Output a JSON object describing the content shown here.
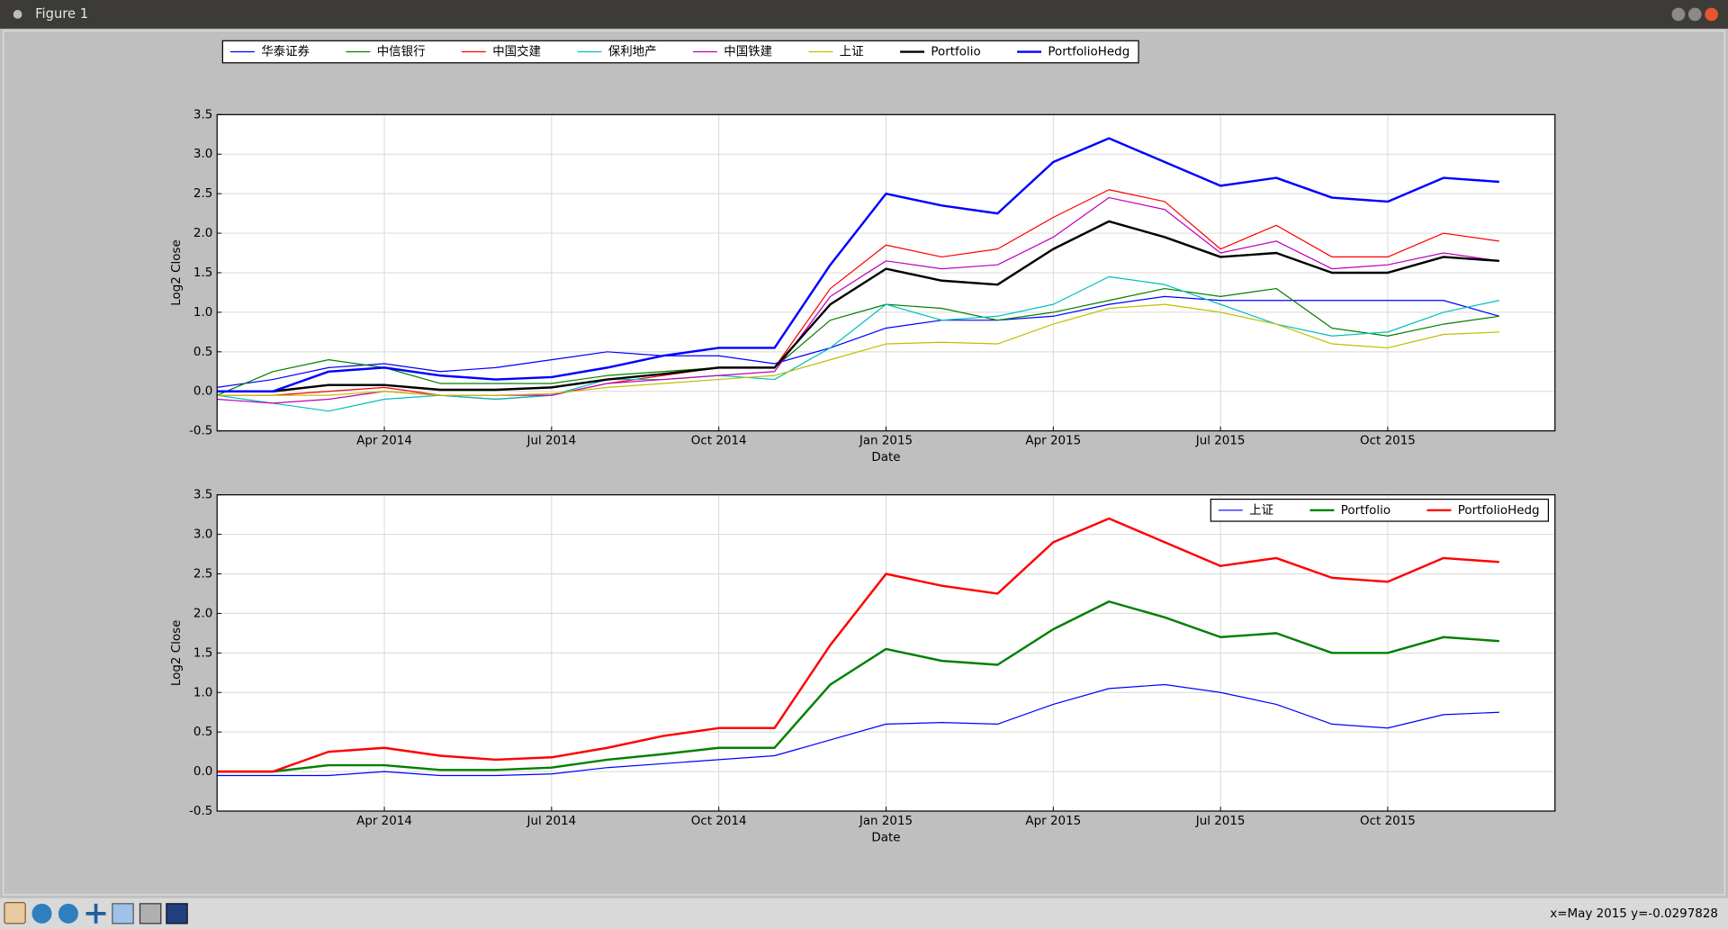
{
  "window": {
    "title": "Figure 1"
  },
  "status": "x=May 2015 y=-0.0297828",
  "chart_data": [
    {
      "type": "line",
      "xlabel": "Date",
      "ylabel": "Log2 Close",
      "x": [
        "2014-01",
        "2014-02",
        "2014-03",
        "2014-04",
        "2014-05",
        "2014-06",
        "2014-07",
        "2014-08",
        "2014-09",
        "2014-10",
        "2014-11",
        "2014-12",
        "2015-01",
        "2015-02",
        "2015-03",
        "2015-04",
        "2015-05",
        "2015-06",
        "2015-07",
        "2015-08",
        "2015-09",
        "2015-10",
        "2015-11",
        "2015-12"
      ],
      "xlim": [
        "2014-01",
        "2016-01"
      ],
      "xticks": [
        {
          "value": "2014-04",
          "label": "Apr 2014"
        },
        {
          "value": "2014-07",
          "label": "Jul 2014"
        },
        {
          "value": "2014-10",
          "label": "Oct 2014"
        },
        {
          "value": "2015-01",
          "label": "Jan 2015"
        },
        {
          "value": "2015-04",
          "label": "Apr 2015"
        },
        {
          "value": "2015-07",
          "label": "Jul 2015"
        },
        {
          "value": "2015-10",
          "label": "Oct 2015"
        }
      ],
      "ylim": [
        -0.5,
        3.5
      ],
      "yticks": [
        -0.5,
        {
          "value": 0,
          "label": "0.0"
        },
        0.5,
        {
          "value": 1,
          "label": "1.0"
        },
        1.5,
        {
          "value": 2,
          "label": "2.0"
        },
        2.5,
        {
          "value": 3,
          "label": "3.0"
        },
        3.5
      ],
      "grid": true,
      "legend": "top-outside",
      "series": [
        {
          "name": "华泰证券",
          "color": "#0000ff",
          "linewidth": 1,
          "values": [
            0.05,
            0.15,
            0.3,
            0.35,
            0.25,
            0.3,
            0.4,
            0.5,
            0.45,
            0.45,
            0.35,
            0.55,
            0.8,
            0.9,
            0.9,
            0.95,
            1.1,
            1.2,
            1.15,
            1.15,
            1.15,
            1.15,
            1.15,
            0.95
          ]
        },
        {
          "name": "中信银行",
          "color": "#008000",
          "linewidth": 1,
          "values": [
            -0.05,
            0.25,
            0.4,
            0.3,
            0.1,
            0.1,
            0.1,
            0.2,
            0.25,
            0.3,
            0.3,
            0.9,
            1.1,
            1.05,
            0.9,
            1.0,
            1.15,
            1.3,
            1.2,
            1.3,
            0.8,
            0.7,
            0.85,
            0.95
          ]
        },
        {
          "name": "中国交建",
          "color": "#ff0000",
          "linewidth": 1,
          "values": [
            -0.05,
            -0.05,
            0.0,
            0.05,
            -0.05,
            -0.1,
            -0.05,
            0.1,
            0.2,
            0.3,
            0.3,
            1.3,
            1.85,
            1.7,
            1.8,
            2.2,
            2.55,
            2.4,
            1.8,
            2.1,
            1.7,
            1.7,
            2.0,
            1.9
          ]
        },
        {
          "name": "保利地产",
          "color": "#00bfbf",
          "linewidth": 1,
          "values": [
            -0.05,
            -0.15,
            -0.25,
            -0.1,
            -0.05,
            -0.1,
            -0.05,
            0.15,
            0.15,
            0.2,
            0.15,
            0.55,
            1.1,
            0.9,
            0.95,
            1.1,
            1.45,
            1.35,
            1.1,
            0.85,
            0.7,
            0.75,
            1.0,
            1.15
          ]
        },
        {
          "name": "中国铁建",
          "color": "#bf00bf",
          "linewidth": 1,
          "values": [
            -0.1,
            -0.15,
            -0.1,
            0.0,
            -0.05,
            -0.05,
            -0.05,
            0.1,
            0.15,
            0.2,
            0.25,
            1.2,
            1.65,
            1.55,
            1.6,
            1.95,
            2.45,
            2.3,
            1.75,
            1.9,
            1.55,
            1.6,
            1.75,
            1.65
          ]
        },
        {
          "name": "上证",
          "color": "#bfbf00",
          "linewidth": 1,
          "values": [
            -0.05,
            -0.05,
            -0.05,
            0.0,
            -0.05,
            -0.05,
            -0.03,
            0.05,
            0.1,
            0.15,
            0.2,
            0.4,
            0.6,
            0.62,
            0.6,
            0.85,
            1.05,
            1.1,
            1.0,
            0.85,
            0.6,
            0.55,
            0.72,
            0.75
          ]
        },
        {
          "name": "Portfolio",
          "color": "#000000",
          "linewidth": 2,
          "values": [
            0.0,
            0.0,
            0.08,
            0.08,
            0.02,
            0.02,
            0.05,
            0.15,
            0.22,
            0.3,
            0.3,
            1.1,
            1.55,
            1.4,
            1.35,
            1.8,
            2.15,
            1.95,
            1.7,
            1.75,
            1.5,
            1.5,
            1.7,
            1.65
          ]
        },
        {
          "name": "PortfolioHedg",
          "color": "#0000ff",
          "linewidth": 2,
          "values": [
            0.0,
            0.0,
            0.25,
            0.3,
            0.2,
            0.15,
            0.18,
            0.3,
            0.45,
            0.55,
            0.55,
            1.6,
            2.5,
            2.35,
            2.25,
            2.9,
            3.2,
            2.9,
            2.6,
            2.7,
            2.45,
            2.4,
            2.7,
            2.65
          ]
        }
      ]
    },
    {
      "type": "line",
      "xlabel": "Date",
      "ylabel": "Log2 Close",
      "x": [
        "2014-01",
        "2014-02",
        "2014-03",
        "2014-04",
        "2014-05",
        "2014-06",
        "2014-07",
        "2014-08",
        "2014-09",
        "2014-10",
        "2014-11",
        "2014-12",
        "2015-01",
        "2015-02",
        "2015-03",
        "2015-04",
        "2015-05",
        "2015-06",
        "2015-07",
        "2015-08",
        "2015-09",
        "2015-10",
        "2015-11",
        "2015-12"
      ],
      "xlim": [
        "2014-01",
        "2016-01"
      ],
      "xticks": [
        {
          "value": "2014-04",
          "label": "Apr 2014"
        },
        {
          "value": "2014-07",
          "label": "Jul 2014"
        },
        {
          "value": "2014-10",
          "label": "Oct 2014"
        },
        {
          "value": "2015-01",
          "label": "Jan 2015"
        },
        {
          "value": "2015-04",
          "label": "Apr 2015"
        },
        {
          "value": "2015-07",
          "label": "Jul 2015"
        },
        {
          "value": "2015-10",
          "label": "Oct 2015"
        }
      ],
      "ylim": [
        -0.5,
        3.5
      ],
      "yticks": [
        -0.5,
        {
          "value": 0,
          "label": "0.0"
        },
        0.5,
        {
          "value": 1,
          "label": "1.0"
        },
        1.5,
        {
          "value": 2,
          "label": "2.0"
        },
        2.5,
        {
          "value": 3,
          "label": "3.0"
        },
        3.5
      ],
      "grid": true,
      "legend": "upper-right",
      "series": [
        {
          "name": "上证",
          "color": "#0000ff",
          "linewidth": 1,
          "values": [
            -0.05,
            -0.05,
            -0.05,
            0.0,
            -0.05,
            -0.05,
            -0.03,
            0.05,
            0.1,
            0.15,
            0.2,
            0.4,
            0.6,
            0.62,
            0.6,
            0.85,
            1.05,
            1.1,
            1.0,
            0.85,
            0.6,
            0.55,
            0.72,
            0.75
          ]
        },
        {
          "name": "Portfolio",
          "color": "#008000",
          "linewidth": 2,
          "values": [
            0.0,
            0.0,
            0.08,
            0.08,
            0.02,
            0.02,
            0.05,
            0.15,
            0.22,
            0.3,
            0.3,
            1.1,
            1.55,
            1.4,
            1.35,
            1.8,
            2.15,
            1.95,
            1.7,
            1.75,
            1.5,
            1.5,
            1.7,
            1.65
          ]
        },
        {
          "name": "PortfolioHedg",
          "color": "#ff0000",
          "linewidth": 2,
          "values": [
            0.0,
            0.0,
            0.25,
            0.3,
            0.2,
            0.15,
            0.18,
            0.3,
            0.45,
            0.55,
            0.55,
            1.6,
            2.5,
            2.35,
            2.25,
            2.9,
            3.2,
            2.9,
            2.6,
            2.7,
            2.45,
            2.4,
            2.7,
            2.65
          ]
        }
      ]
    }
  ]
}
